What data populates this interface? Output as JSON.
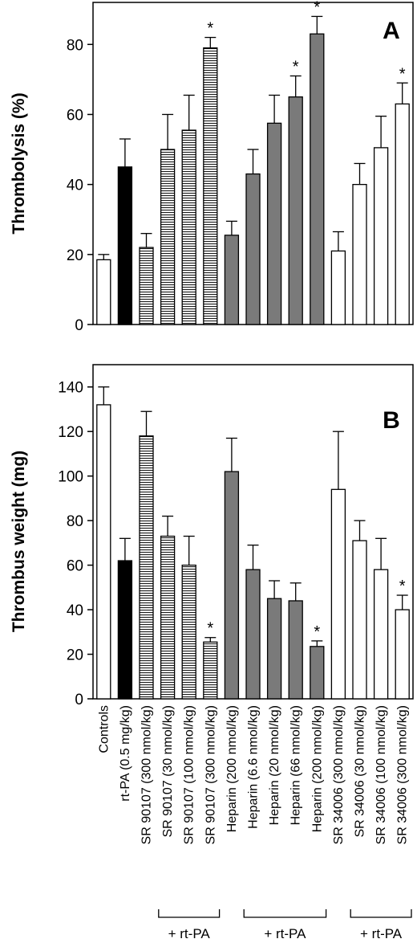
{
  "colors": {
    "white": "#ffffff",
    "black": "#000000",
    "dark_gray": "#7a7a7a"
  },
  "chart_data": [
    {
      "type": "bar",
      "panel": "A",
      "ylabel": "Thrombolysis (%)",
      "ylim": [
        0,
        92
      ],
      "yticks": [
        0,
        20,
        40,
        60,
        80
      ],
      "categories": [
        "Controls",
        "rt-PA (0.5 mg/kg)",
        "SR 90107 (300 nmol/kg)",
        "SR 90107 (30 nmol/kg)",
        "SR 90107 (100 nmol/kg)",
        "SR 90107 (300 nmol/kg)",
        "Heparin (200 nmol/kg)",
        "Heparin (6.6 nmol/kg)",
        "Heparin (20 nmol/kg)",
        "Heparin (66 nmol/kg)",
        "Heparin (200 nmol/kg)",
        "SR 34006 (300 nmol/kg)",
        "SR 34006 (30 nmol/kg)",
        "SR 34006 (100 nmol/kg)",
        "SR 34006 (300 nmol/kg)"
      ],
      "values": [
        18.5,
        45,
        22,
        50,
        55.5,
        79,
        25.5,
        43,
        57.5,
        65,
        83,
        21,
        40,
        50.5,
        63
      ],
      "errors": [
        1.5,
        8,
        4,
        10,
        10,
        3,
        4,
        7,
        8,
        6,
        5,
        5.5,
        6,
        9,
        6
      ],
      "fills": [
        "white",
        "black",
        "hatch",
        "hatch",
        "hatch",
        "hatch",
        "dark",
        "dark",
        "dark",
        "dark",
        "dark",
        "white",
        "white",
        "white",
        "white"
      ],
      "significant": [
        false,
        false,
        false,
        false,
        false,
        true,
        false,
        false,
        false,
        true,
        true,
        false,
        false,
        false,
        true
      ],
      "star": "*"
    },
    {
      "type": "bar",
      "panel": "B",
      "ylabel": "Thrombus weight (mg)",
      "ylim": [
        0,
        150
      ],
      "yticks": [
        0,
        20,
        40,
        60,
        80,
        100,
        120,
        140
      ],
      "values": [
        132,
        62,
        118,
        73,
        60,
        25.5,
        102,
        58,
        45,
        44,
        23.5,
        94,
        71,
        58,
        40
      ],
      "errors": [
        8,
        10,
        11,
        9,
        13,
        2,
        15,
        11,
        8,
        8,
        2.5,
        26,
        9,
        14,
        6.5
      ],
      "significant": [
        false,
        false,
        false,
        false,
        false,
        true,
        false,
        false,
        false,
        false,
        true,
        false,
        false,
        false,
        true
      ],
      "star": "*"
    }
  ],
  "groups": [
    {
      "label": "+ rt-PA",
      "from": 3,
      "to": 5
    },
    {
      "label": "+ rt-PA",
      "from": 7,
      "to": 10
    },
    {
      "label": "+ rt-PA",
      "from": 12,
      "to": 14
    }
  ]
}
